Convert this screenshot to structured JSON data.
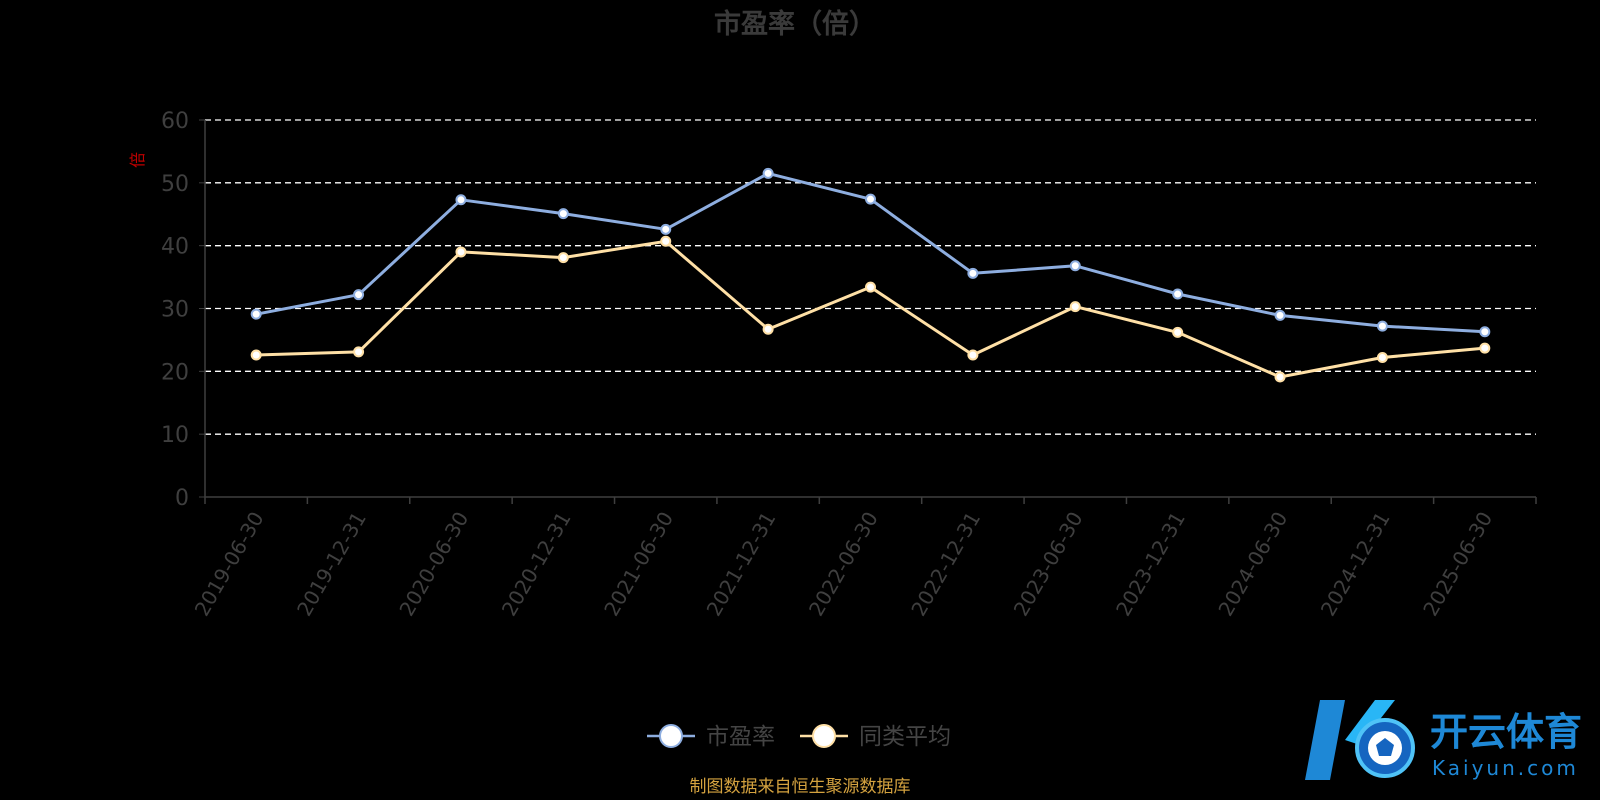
{
  "chart_data": {
    "type": "line",
    "title": "市盈率（倍）",
    "ylabel": "倍",
    "ylim": [
      0,
      60
    ],
    "yticks": [
      0,
      10,
      20,
      30,
      40,
      50,
      60
    ],
    "grid": true,
    "legend_position": "bottom-center",
    "categories": [
      "2019-06-30",
      "2019-12-31",
      "2020-06-30",
      "2020-12-31",
      "2021-06-30",
      "2021-12-31",
      "2022-06-30",
      "2022-12-31",
      "2023-06-30",
      "2023-12-31",
      "2024-06-30",
      "2024-12-31",
      "2025-06-30"
    ],
    "series": [
      {
        "name": "市盈率",
        "color": "#8eaee0",
        "values": [
          29.1,
          32.2,
          47.3,
          45.1,
          42.6,
          51.5,
          47.4,
          35.6,
          36.8,
          32.3,
          28.9,
          27.2,
          26.3
        ]
      },
      {
        "name": "同类平均",
        "color": "#ffe0a6",
        "values": [
          22.6,
          23.1,
          39.0,
          38.1,
          40.7,
          26.7,
          33.4,
          22.6,
          30.3,
          26.2,
          19.1,
          22.2,
          23.7
        ]
      }
    ]
  },
  "source_text": "制图数据来自恒生聚源数据库",
  "watermark": {
    "cn": "开云体育",
    "en": "Kaiyun.com"
  }
}
